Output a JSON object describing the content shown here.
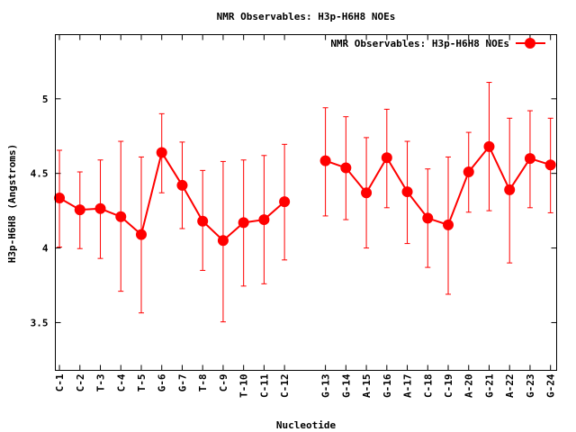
{
  "chart_data": {
    "type": "line",
    "title": "NMR Observables: H3p-H6H8 NOEs",
    "xlabel": "Nucleotide",
    "ylabel": "H3p-H6H8 (Angstroms)",
    "legend": {
      "label": "NMR Observables: H3p-H6H8 NOEs",
      "placement": "top-right"
    },
    "color": "#ff0000",
    "ylim": [
      3.18,
      5.43
    ],
    "xlim": [
      0.8,
      25.3
    ],
    "yticks": [
      3.5,
      4,
      4.5,
      5
    ],
    "ytick_labels": [
      "3.5",
      "4",
      "4.5",
      "5"
    ],
    "categories": [
      "C-1",
      "C-2",
      "T-3",
      "C-4",
      "T-5",
      "G-6",
      "G-7",
      "T-8",
      "C-9",
      "T-10",
      "C-11",
      "C-12",
      "G-13",
      "G-14",
      "A-15",
      "G-16",
      "A-17",
      "C-18",
      "C-19",
      "A-20",
      "G-21",
      "A-22",
      "G-23",
      "G-24"
    ],
    "x": [
      1,
      2,
      3,
      4,
      5,
      6,
      7,
      8,
      9,
      10,
      11,
      12,
      14,
      15,
      16,
      17,
      18,
      19,
      20,
      21,
      22,
      23,
      24,
      25
    ],
    "segments_break_after": "C-12",
    "values": [
      4.335,
      4.256,
      4.264,
      4.21,
      4.09,
      4.64,
      4.42,
      4.18,
      4.05,
      4.17,
      4.19,
      4.31,
      4.585,
      4.537,
      4.37,
      4.605,
      4.377,
      4.2,
      4.155,
      4.51,
      4.68,
      4.39,
      4.6,
      4.557
    ],
    "err_high": [
      4.655,
      4.51,
      4.59,
      4.715,
      4.61,
      4.9,
      4.71,
      4.52,
      4.58,
      4.59,
      4.62,
      4.695,
      4.94,
      4.88,
      4.74,
      4.93,
      4.715,
      4.53,
      4.61,
      4.775,
      5.11,
      4.87,
      4.92,
      4.87
    ],
    "err_low": [
      4.006,
      3.996,
      3.93,
      3.71,
      3.565,
      4.37,
      4.13,
      3.85,
      3.505,
      3.745,
      3.76,
      3.92,
      4.215,
      4.19,
      4.0,
      4.27,
      4.03,
      3.87,
      3.69,
      4.24,
      4.25,
      3.9,
      4.27,
      4.236
    ]
  }
}
